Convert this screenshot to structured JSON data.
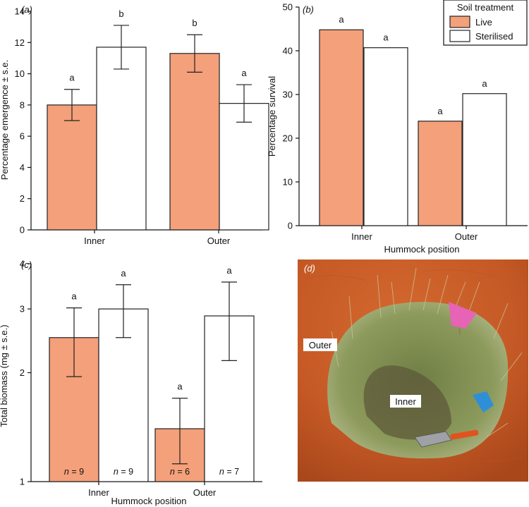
{
  "colors": {
    "live": "#F4A07A",
    "sterilised": "#FFFFFF",
    "outline": "#222222"
  },
  "chart_data": [
    {
      "panel": "(a)",
      "type": "bar",
      "categories": [
        "Inner",
        "Outer"
      ],
      "series": [
        {
          "name": "Live",
          "values": [
            8.0,
            11.3
          ],
          "errors": [
            1.0,
            1.2
          ],
          "letters": [
            "a",
            "b"
          ]
        },
        {
          "name": "Sterilised",
          "values": [
            11.7,
            8.1
          ],
          "errors": [
            1.4,
            1.2
          ],
          "letters": [
            "b",
            "a"
          ]
        }
      ],
      "xlabel": "",
      "ylabel": "Percentage emergence ± s.e.",
      "ylim": [
        0,
        14
      ],
      "yticks": [
        "0",
        "2",
        "4",
        "6",
        "8",
        "10",
        "12",
        "14"
      ],
      "grid": false
    },
    {
      "panel": "(b)",
      "type": "bar",
      "categories": [
        "Inner",
        "Outer"
      ],
      "series": [
        {
          "name": "Live",
          "values": [
            44.8,
            23.9
          ],
          "letters": [
            "a",
            "a"
          ]
        },
        {
          "name": "Sterilised",
          "values": [
            40.7,
            30.2
          ],
          "letters": [
            "a",
            "a"
          ]
        }
      ],
      "xlabel": "Hummock position",
      "ylabel": "Percentage survival",
      "ylim": [
        0,
        50
      ],
      "yticks": [
        "0",
        "10",
        "20",
        "30",
        "40",
        "50"
      ],
      "legend": {
        "title": "Soil treatment",
        "entries": [
          "Live",
          "Sterilised"
        ],
        "position": "top-right"
      },
      "grid": false
    },
    {
      "panel": "(c)",
      "type": "bar",
      "scale": "log",
      "categories": [
        "Inner",
        "Outer"
      ],
      "series": [
        {
          "name": "Live",
          "values": [
            2.5,
            1.4
          ],
          "err_low": [
            1.95,
            1.12
          ],
          "err_high": [
            3.02,
            1.7
          ],
          "letters": [
            "a",
            "a"
          ],
          "n": [
            "n = 9",
            "n = 6"
          ]
        },
        {
          "name": "Sterilised",
          "values": [
            3.0,
            2.87
          ],
          "err_low": [
            2.5,
            2.16
          ],
          "err_high": [
            3.5,
            3.56
          ],
          "letters": [
            "a",
            "a"
          ],
          "n": [
            "n = 9",
            "n = 7"
          ]
        }
      ],
      "xlabel": "Hummock position",
      "ylabel": "Total biomass (mg ± s.e.)",
      "ylim": [
        1,
        4
      ],
      "yticks": [
        "1",
        "2",
        "3",
        "4"
      ],
      "grid": false
    }
  ],
  "photo": {
    "panel": "(d)",
    "labels": [
      "Outer",
      "Inner"
    ]
  }
}
